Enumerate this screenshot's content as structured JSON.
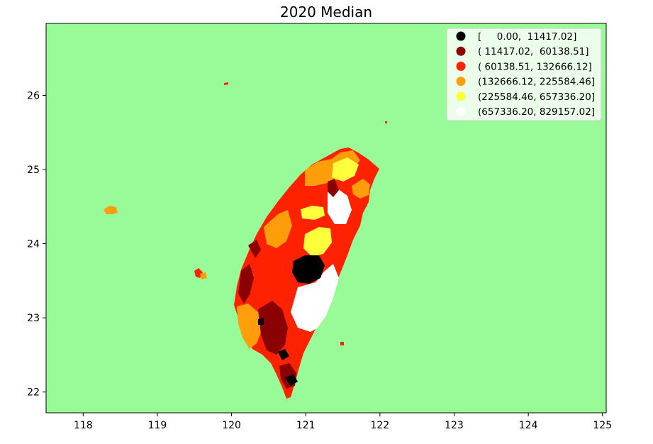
{
  "chart_data": {
    "type": "choropleth",
    "title": "2020 Median",
    "xlabel": "",
    "ylabel": "",
    "xlim": [
      117.5,
      125.05
    ],
    "ylim": [
      21.72,
      26.97
    ],
    "x_ticks": [
      "118",
      "119",
      "120",
      "121",
      "122",
      "123",
      "124",
      "125"
    ],
    "y_ticks": [
      "22",
      "23",
      "24",
      "25",
      "26"
    ],
    "legend_position": "top-right",
    "legend": [
      {
        "label": "[     0.00,  11417.02]",
        "color": "#000000"
      },
      {
        "label": "( 11417.02,  60138.51]",
        "color": "#8b0000"
      },
      {
        "label": "( 60138.51, 132666.12]",
        "color": "#ff2200"
      },
      {
        "label": "(132666.12, 225584.46]",
        "color": "#ff9d0b"
      },
      {
        "label": "(225584.46, 657336.20]",
        "color": "#ffff3b"
      },
      {
        "label": "(657336.20, 829157.02]",
        "color": "#ffffff"
      }
    ],
    "background_color": "#98fb98",
    "colormap": "hot"
  }
}
